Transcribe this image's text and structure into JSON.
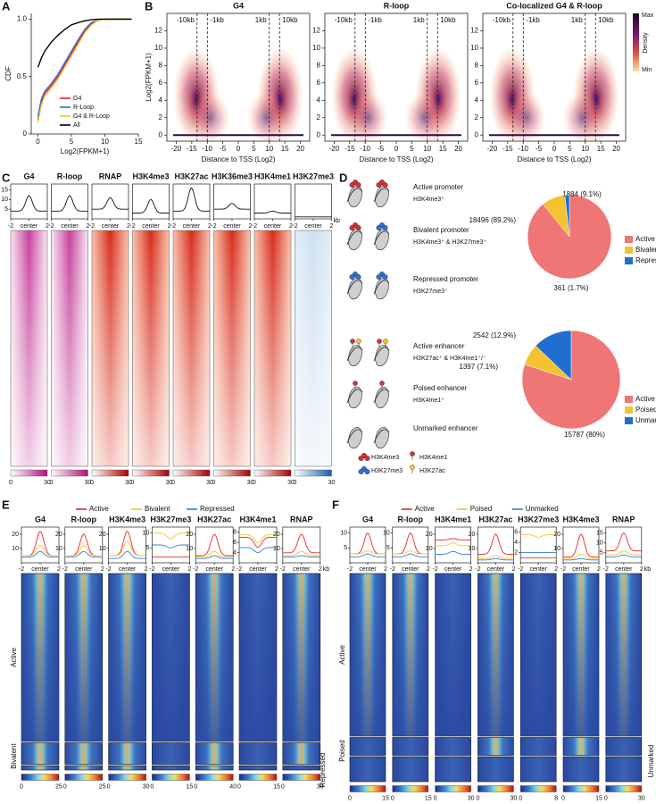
{
  "panel_labels": [
    "A",
    "B",
    "C",
    "D",
    "E",
    "F"
  ],
  "chart_data": [
    {
      "type": "line",
      "xlabel": "Log2(FPKM+1)",
      "ylabel": "CDF",
      "x": [
        0,
        0.5,
        1,
        2,
        3,
        4,
        5,
        6,
        7,
        8,
        9,
        10,
        12,
        14
      ],
      "xlim": [
        -1,
        15
      ],
      "xticks": [
        0,
        5,
        10,
        15
      ],
      "ylim": [
        0,
        1.05
      ],
      "yticks": [
        0,
        0.5,
        {
          "value": 1,
          "label": "1.0"
        }
      ],
      "legend": "lower right",
      "series": [
        {
          "name": "G4",
          "color": "#e8252a",
          "values": [
            0.12,
            0.28,
            0.35,
            0.42,
            0.5,
            0.6,
            0.7,
            0.8,
            0.9,
            0.96,
            0.99,
            1,
            1,
            1
          ]
        },
        {
          "name": "R-Loop",
          "color": "#2a6fd6",
          "values": [
            0.15,
            0.3,
            0.37,
            0.44,
            0.52,
            0.62,
            0.72,
            0.82,
            0.91,
            0.97,
            0.99,
            1,
            1,
            1
          ]
        },
        {
          "name": "G4 & R-Loop",
          "color": "#f5c230",
          "values": [
            0.1,
            0.25,
            0.33,
            0.4,
            0.48,
            0.58,
            0.68,
            0.78,
            0.88,
            0.95,
            0.99,
            1,
            1,
            1
          ]
        },
        {
          "name": "All",
          "color": "#000000",
          "values": [
            0.58,
            0.66,
            0.72,
            0.8,
            0.86,
            0.91,
            0.95,
            0.97,
            0.985,
            0.995,
            1,
            1,
            1,
            1
          ]
        }
      ]
    },
    {
      "type": "density",
      "title": "G4",
      "xlabel": "Distance to TSS (Log2)",
      "ylabel": "Log2(FPKM+1)",
      "xlim": [
        -23,
        23
      ],
      "xticks": [
        -20,
        -15,
        -10,
        -5,
        0,
        5,
        10,
        15,
        20
      ],
      "ylim": [
        -0.7,
        14
      ],
      "yticks": [
        0,
        2,
        4,
        6,
        8,
        10,
        12
      ],
      "vlines": [
        {
          "value": -13.29,
          "label": "-10kb"
        },
        {
          "value": -9.97,
          "label": "-1kb"
        },
        {
          "value": 9.97,
          "label": "1kb"
        },
        {
          "value": 13.29,
          "label": "10kb"
        }
      ]
    },
    {
      "type": "density",
      "title": "R-loop",
      "xlabel": "Distance to TSS (Log2)",
      "xlim": [
        -23,
        23
      ],
      "xticks": [
        -20,
        -15,
        -10,
        -5,
        0,
        5,
        10,
        15,
        20
      ],
      "ylim": [
        -0.7,
        14
      ],
      "yticks": [
        0,
        2,
        4,
        6,
        8,
        10,
        12
      ],
      "vlines": [
        {
          "value": -13.29,
          "label": "-10kb"
        },
        {
          "value": -9.97,
          "label": "-1kb"
        },
        {
          "value": 9.97,
          "label": "1kb"
        },
        {
          "value": 13.29,
          "label": "10kb"
        }
      ]
    },
    {
      "type": "density",
      "title": "Co-localized G4 & R-loop",
      "xlabel": "Distance to TSS (Log2)",
      "xlim": [
        -23,
        23
      ],
      "xticks": [
        -20,
        -15,
        -10,
        -5,
        0,
        5,
        10,
        15,
        20
      ],
      "ylim": [
        -0.7,
        14
      ],
      "yticks": [
        0,
        2,
        4,
        6,
        8,
        10,
        12
      ],
      "vlines": [
        {
          "value": -13.29,
          "label": "-10kb"
        },
        {
          "value": -9.97,
          "label": "-1kb"
        },
        {
          "value": 9.97,
          "label": "1kb"
        },
        {
          "value": 13.29,
          "label": "10kb"
        }
      ],
      "colorbar": {
        "title": "Density",
        "max_label": "Max",
        "min_label": "Min"
      }
    },
    {
      "type": "pie",
      "categories": [
        "Active",
        "Bivalent",
        "Repressed"
      ],
      "values": [
        18496,
        1884,
        361
      ],
      "value_labels": [
        "18496 (89.2%)",
        "1884 (9.1%)",
        "361 (1.7%)"
      ],
      "colors": [
        "#f07575",
        "#f5c230",
        "#1f6fd0"
      ]
    },
    {
      "type": "pie",
      "categories": [
        "Active",
        "Poised",
        "Unmarked"
      ],
      "values": [
        15787,
        1397,
        2542
      ],
      "value_labels": [
        "15787 (80%)",
        "1397 (7.1%)",
        "2542 (12.9%)"
      ],
      "colors": [
        "#f07575",
        "#f5c230",
        "#1f6fd0"
      ]
    }
  ],
  "panel_c": {
    "xlim": [
      -2,
      2
    ],
    "xticks": [
      -2,
      {
        "value": 0,
        "label": "center"
      },
      2
    ],
    "x_unit": "kb",
    "ylim": [
      0,
      18
    ],
    "yticks": [
      5,
      10,
      15
    ],
    "tracks": [
      {
        "name": "G4",
        "peak": 12,
        "base": 4,
        "cmap": "magenta",
        "clim": [
          0,
          30
        ]
      },
      {
        "name": "R-loop",
        "peak": 12,
        "base": 4,
        "cmap": "magenta",
        "clim": [
          0,
          30
        ]
      },
      {
        "name": "RNAP",
        "peak": 11,
        "base": 5,
        "cmap": "red",
        "clim": [
          0,
          30
        ]
      },
      {
        "name": "H3K4me3",
        "peak": 10,
        "base": 3,
        "cmap": "red",
        "clim": [
          0,
          30
        ]
      },
      {
        "name": "H3K27ac",
        "peak": 16,
        "base": 4,
        "cmap": "red",
        "clim": [
          0,
          30
        ]
      },
      {
        "name": "H3K36me3",
        "peak": 8,
        "base": 5,
        "cmap": "red",
        "clim": [
          0,
          30
        ]
      },
      {
        "name": "H3K4me1",
        "peak": 4,
        "base": 3,
        "cmap": "red",
        "clim": [
          0,
          30
        ]
      },
      {
        "name": "H3K27me3",
        "peak": 1,
        "base": 1,
        "cmap": "blue",
        "clim": [
          0,
          30
        ]
      }
    ]
  },
  "panel_d": {
    "rows": [
      {
        "label": "Active promoter",
        "marks": "H3K4me3⁺"
      },
      {
        "label": "Bivalent promoter",
        "marks": "H3K4me3⁺ & H3K27me3⁺"
      },
      {
        "label": "Repressed promoter",
        "marks": "H3K27me3⁺"
      },
      {
        "label": "Active enhancer",
        "marks": "H3K27ac⁺ & H3K4me1⁺/⁻"
      },
      {
        "label": "Poised enhancer",
        "marks": "H3K4me1⁺"
      },
      {
        "label": "Unmarked enhancer"
      }
    ],
    "key": [
      "H3K4me3",
      "H3K4me1",
      "H3K27me3",
      "H3K27ac"
    ]
  },
  "panel_e": {
    "groups": [
      {
        "name": "Active",
        "color": "#e8252a"
      },
      {
        "name": "Bivalent",
        "color": "#f5c230"
      },
      {
        "name": "Repressed",
        "color": "#2a7fd6"
      }
    ],
    "xlim": [
      -2,
      2
    ],
    "xticks": [
      -2,
      {
        "value": 0,
        "label": "center"
      },
      2
    ],
    "x_unit": "kb",
    "tracks": [
      {
        "name": "G4",
        "ylim": [
          0,
          25
        ],
        "yticks": [
          10,
          20
        ],
        "peaks": [
          22,
          12,
          8
        ],
        "base": [
          5,
          5,
          4
        ],
        "clim": [
          0,
          25
        ]
      },
      {
        "name": "R-loop",
        "ylim": [
          0,
          25
        ],
        "yticks": [
          10,
          20
        ],
        "peaks": [
          20,
          12,
          8
        ],
        "base": [
          5,
          5,
          4
        ],
        "clim": [
          0,
          25
        ]
      },
      {
        "name": "H3K4me3",
        "ylim": [
          0,
          25
        ],
        "yticks": [
          10,
          20
        ],
        "peaks": [
          22,
          15,
          8
        ],
        "base": [
          5,
          5,
          3
        ],
        "clim": [
          0,
          30
        ]
      },
      {
        "name": "H3K27me3",
        "ylim": [
          0,
          12
        ],
        "yticks": [
          5,
          10
        ],
        "peaks": [
          2,
          8,
          5
        ],
        "base": [
          2,
          10,
          6
        ],
        "clim": [
          0,
          15
        ]
      },
      {
        "name": "H3K27ac",
        "ylim": [
          0,
          25
        ],
        "yticks": [
          10,
          20
        ],
        "peaks": [
          20,
          8,
          5
        ],
        "base": [
          5,
          4,
          3
        ],
        "clim": [
          0,
          40
        ]
      },
      {
        "name": "H3K4me1",
        "ylim": [
          2,
          9
        ],
        "yticks": [
          4,
          6,
          8
        ],
        "peaks": [
          5,
          6,
          4
        ],
        "base": [
          7,
          7.5,
          5
        ],
        "clim": [
          0,
          15
        ]
      },
      {
        "name": "RNAP",
        "ylim": [
          0,
          25
        ],
        "yticks": [
          10,
          20
        ],
        "peaks": [
          20,
          8,
          5
        ],
        "base": [
          7,
          5,
          4
        ],
        "clim": [
          0,
          30
        ]
      }
    ]
  },
  "panel_f": {
    "groups": [
      {
        "name": "Active",
        "color": "#e8252a"
      },
      {
        "name": "Poised",
        "color": "#f5c230"
      },
      {
        "name": "Unmarked",
        "color": "#2a7fd6"
      }
    ],
    "xlim": [
      -2,
      2
    ],
    "xticks": [
      -2,
      {
        "value": 0,
        "label": "center"
      },
      2
    ],
    "x_unit": "kb",
    "tracks": [
      {
        "name": "G4",
        "ylim": [
          0,
          12
        ],
        "yticks": [
          5,
          10
        ],
        "peaks": [
          10,
          4,
          3
        ],
        "base": [
          3,
          3,
          2
        ],
        "clim": [
          0,
          15
        ]
      },
      {
        "name": "R-loop",
        "ylim": [
          0,
          12
        ],
        "yticks": [
          5,
          10
        ],
        "peaks": [
          10,
          4,
          3
        ],
        "base": [
          3,
          3,
          2
        ],
        "clim": [
          0,
          15
        ]
      },
      {
        "name": "H3K4me1",
        "ylim": [
          0,
          25
        ],
        "yticks": [
          10,
          20
        ],
        "peaks": [
          17,
          14,
          8
        ],
        "base": [
          16,
          12,
          6
        ],
        "clim": [
          0,
          30
        ]
      },
      {
        "name": "H3K27ac",
        "ylim": [
          0,
          25
        ],
        "yticks": [
          10,
          20
        ],
        "peaks": [
          20,
          5,
          3
        ],
        "base": [
          6,
          3,
          2
        ],
        "clim": [
          0,
          30
        ]
      },
      {
        "name": "H3K27me3",
        "ylim": [
          0,
          7
        ],
        "yticks": [
          2,
          4,
          6
        ],
        "peaks": [
          1,
          5,
          2
        ],
        "base": [
          1,
          5.5,
          2
        ],
        "clim": [
          0,
          8
        ]
      },
      {
        "name": "H3K4me3",
        "ylim": [
          0,
          25
        ],
        "yticks": [
          10,
          20
        ],
        "peaks": [
          20,
          6,
          3
        ],
        "base": [
          4,
          3,
          2
        ],
        "clim": [
          0,
          15
        ]
      },
      {
        "name": "RNAP",
        "ylim": [
          0,
          18
        ],
        "yticks": [
          5,
          10,
          15
        ],
        "peaks": [
          15,
          6,
          4
        ],
        "base": [
          6,
          4,
          3
        ],
        "clim": [
          0,
          30
        ]
      }
    ]
  }
}
